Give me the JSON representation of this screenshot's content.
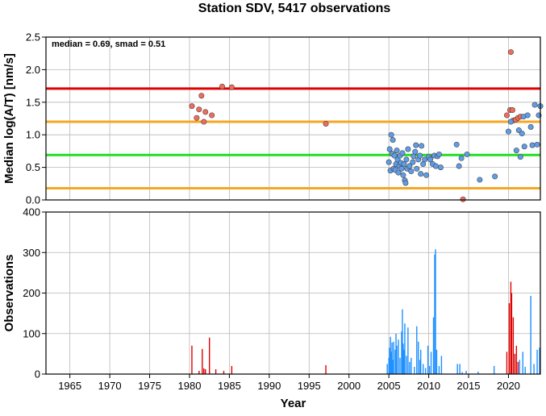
{
  "chart_data": [
    {
      "type": "scatter",
      "title": "Station SDV, 5417 observations",
      "ylabel": "Median log(A/T) [nm/s]",
      "xlim": [
        1962,
        2024
      ],
      "ylim": [
        0,
        2.5
      ],
      "y_ticks": [
        0.0,
        0.5,
        1.0,
        1.5,
        2.0,
        2.5
      ],
      "y_tick_labels": [
        "0.0",
        "0.5",
        "1.0",
        "1.5",
        "2.0",
        "2.5"
      ],
      "grid": true,
      "annotation": "median = 0.69, smad = 0.51",
      "reference_lines": [
        {
          "y": 1.71,
          "color": "#e00000"
        },
        {
          "y": 1.2,
          "color": "#f5a623"
        },
        {
          "y": 0.69,
          "color": "#22dd22"
        },
        {
          "y": 0.18,
          "color": "#f5a623"
        }
      ],
      "series": [
        {
          "color": "#f26b5b",
          "points": [
            [
              1980.3,
              1.44
            ],
            [
              1980.9,
              1.26
            ],
            [
              1981.2,
              1.39
            ],
            [
              1981.5,
              1.6
            ],
            [
              1981.8,
              1.2
            ],
            [
              1982.0,
              1.35
            ],
            [
              1982.8,
              1.3
            ],
            [
              1984.1,
              1.74
            ],
            [
              1985.3,
              1.73
            ],
            [
              1997.1,
              1.17
            ],
            [
              2019.8,
              1.3
            ],
            [
              2020.2,
              1.38
            ],
            [
              2020.3,
              2.27
            ],
            [
              2020.5,
              1.38
            ],
            [
              2020.6,
              1.22
            ],
            [
              2020.9,
              1.23
            ],
            [
              2021.2,
              1.26
            ],
            [
              2021.5,
              1.28
            ]
          ]
        },
        {
          "color": "#5f9de8",
          "points": [
            [
              2005.0,
              0.58
            ],
            [
              2005.1,
              0.78
            ],
            [
              2005.2,
              0.45
            ],
            [
              2005.3,
              1.0
            ],
            [
              2005.4,
              0.71
            ],
            [
              2005.5,
              0.92
            ],
            [
              2005.6,
              0.48
            ],
            [
              2005.7,
              0.68
            ],
            [
              2005.8,
              0.46
            ],
            [
              2005.9,
              0.55
            ],
            [
              2006.0,
              0.76
            ],
            [
              2006.1,
              0.62
            ],
            [
              2006.2,
              0.42
            ],
            [
              2006.3,
              0.52
            ],
            [
              2006.4,
              0.68
            ],
            [
              2006.5,
              0.57
            ],
            [
              2006.6,
              0.48
            ],
            [
              2006.7,
              0.72
            ],
            [
              2006.8,
              0.38
            ],
            [
              2006.9,
              0.55
            ],
            [
              2007.0,
              0.3
            ],
            [
              2007.1,
              0.26
            ],
            [
              2007.2,
              0.62
            ],
            [
              2007.3,
              0.48
            ],
            [
              2007.4,
              0.78
            ],
            [
              2007.6,
              0.52
            ],
            [
              2007.8,
              0.44
            ],
            [
              2008.0,
              0.58
            ],
            [
              2008.1,
              0.67
            ],
            [
              2008.3,
              0.74
            ],
            [
              2008.4,
              0.84
            ],
            [
              2008.5,
              0.48
            ],
            [
              2008.7,
              0.62
            ],
            [
              2008.9,
              0.68
            ],
            [
              2009.0,
              0.4
            ],
            [
              2009.1,
              0.83
            ],
            [
              2009.3,
              0.55
            ],
            [
              2009.5,
              0.62
            ],
            [
              2009.7,
              0.38
            ],
            [
              2010.0,
              0.66
            ],
            [
              2010.2,
              0.62
            ],
            [
              2010.5,
              0.55
            ],
            [
              2010.7,
              0.68
            ],
            [
              2010.9,
              0.52
            ],
            [
              2011.1,
              0.67
            ],
            [
              2011.3,
              0.7
            ],
            [
              2011.5,
              0.5
            ],
            [
              2013.5,
              0.85
            ],
            [
              2013.8,
              0.52
            ],
            [
              2014.1,
              0.64
            ],
            [
              2014.8,
              0.7
            ],
            [
              2016.4,
              0.31
            ],
            [
              2018.3,
              0.36
            ],
            [
              2020.0,
              1.05
            ],
            [
              2020.3,
              1.2
            ],
            [
              2021.0,
              0.76
            ],
            [
              2021.3,
              1.07
            ],
            [
              2021.5,
              0.66
            ],
            [
              2021.7,
              1.02
            ],
            [
              2021.9,
              1.28
            ],
            [
              2022.0,
              0.82
            ],
            [
              2022.4,
              1.3
            ],
            [
              2022.8,
              1.12
            ],
            [
              2023.0,
              0.84
            ],
            [
              2023.3,
              1.46
            ],
            [
              2023.6,
              0.85
            ],
            [
              2023.8,
              1.3
            ],
            [
              2024.0,
              1.44
            ]
          ]
        },
        {
          "color": "#f26b5b",
          "points": [
            [
              2014.3,
              0.01
            ]
          ]
        }
      ]
    },
    {
      "type": "bar",
      "xlabel": "Year",
      "ylabel": "Observations",
      "xlim": [
        1962,
        2024
      ],
      "ylim": [
        0,
        400
      ],
      "x_ticks": [
        1965,
        1970,
        1975,
        1980,
        1985,
        1990,
        1995,
        2000,
        2005,
        2010,
        2015,
        2020
      ],
      "x_tick_labels": [
        "1965",
        "1970",
        "1975",
        "1980",
        "1985",
        "1990",
        "1995",
        "2000",
        "2005",
        "2010",
        "2015",
        "2020"
      ],
      "y_ticks": [
        0,
        100,
        200,
        300,
        400
      ],
      "y_tick_labels": [
        "0",
        "100",
        "200",
        "300",
        "400"
      ],
      "grid": true,
      "series": [
        {
          "color": "#e00000",
          "bars": [
            [
              1980.3,
              70
            ],
            [
              1981.2,
              8
            ],
            [
              1981.6,
              62
            ],
            [
              1981.8,
              14
            ],
            [
              1982.0,
              12
            ],
            [
              1982.5,
              90
            ],
            [
              1983.3,
              12
            ],
            [
              1984.3,
              8
            ],
            [
              1985.3,
              20
            ],
            [
              1997.1,
              22
            ],
            [
              2019.8,
              55
            ],
            [
              2020.1,
              175
            ],
            [
              2020.3,
              228
            ],
            [
              2020.4,
              200
            ],
            [
              2020.6,
              140
            ],
            [
              2020.8,
              50
            ],
            [
              2021.0,
              70
            ],
            [
              2021.2,
              30
            ]
          ]
        },
        {
          "color": "#1e90ff",
          "bars": [
            [
              2004.8,
              25
            ],
            [
              2005.0,
              40
            ],
            [
              2005.1,
              65
            ],
            [
              2005.2,
              92
            ],
            [
              2005.3,
              55
            ],
            [
              2005.4,
              78
            ],
            [
              2005.5,
              35
            ],
            [
              2005.6,
              80
            ],
            [
              2005.8,
              60
            ],
            [
              2005.9,
              100
            ],
            [
              2006.0,
              70
            ],
            [
              2006.2,
              85
            ],
            [
              2006.4,
              40
            ],
            [
              2006.6,
              105
            ],
            [
              2006.7,
              160
            ],
            [
              2006.8,
              75
            ],
            [
              2006.9,
              60
            ],
            [
              2007.0,
              125
            ],
            [
              2007.2,
              45
            ],
            [
              2007.4,
              115
            ],
            [
              2007.6,
              30
            ],
            [
              2007.8,
              40
            ],
            [
              2008.2,
              18
            ],
            [
              2008.5,
              118
            ],
            [
              2008.7,
              80
            ],
            [
              2008.9,
              35
            ],
            [
              2009.0,
              60
            ],
            [
              2009.3,
              25
            ],
            [
              2009.6,
              15
            ],
            [
              2009.9,
              70
            ],
            [
              2010.1,
              20
            ],
            [
              2010.3,
              55
            ],
            [
              2010.6,
              140
            ],
            [
              2010.75,
              295
            ],
            [
              2010.85,
              308
            ],
            [
              2011.0,
              60
            ],
            [
              2011.3,
              20
            ],
            [
              2011.6,
              45
            ],
            [
              2013.6,
              25
            ],
            [
              2013.9,
              25
            ],
            [
              2014.2,
              5
            ],
            [
              2014.7,
              8
            ],
            [
              2016.2,
              6
            ],
            [
              2018.2,
              20
            ],
            [
              2021.4,
              35
            ],
            [
              2021.8,
              55
            ],
            [
              2022.1,
              18
            ],
            [
              2022.8,
              193
            ],
            [
              2023.2,
              25
            ],
            [
              2023.6,
              60
            ],
            [
              2023.9,
              65
            ]
          ]
        }
      ]
    }
  ]
}
